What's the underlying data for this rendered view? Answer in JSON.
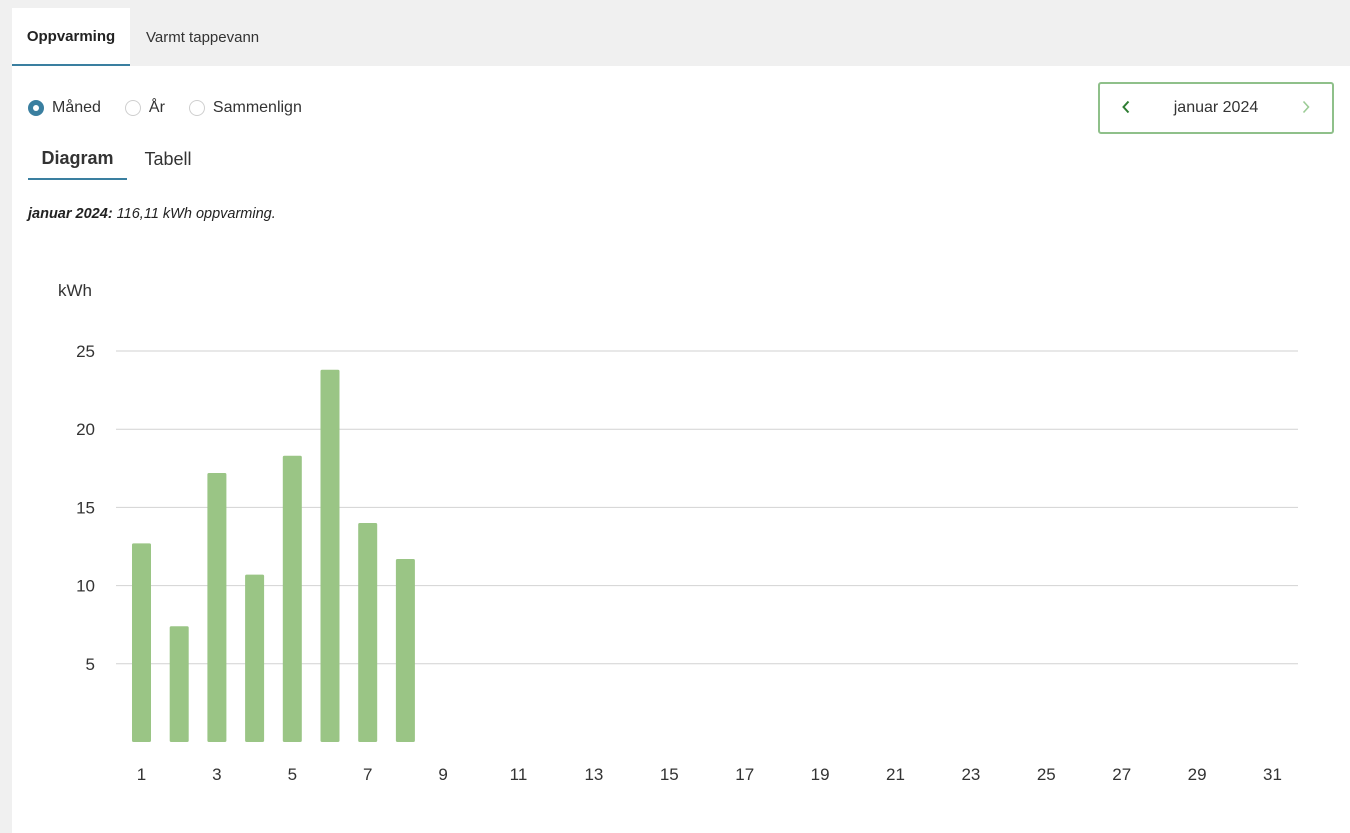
{
  "tabs": [
    {
      "label": "Oppvarming",
      "active": true
    },
    {
      "label": "Varmt tappevann",
      "active": false
    }
  ],
  "period_options": [
    {
      "label": "Måned",
      "checked": true
    },
    {
      "label": "År",
      "checked": false
    },
    {
      "label": "Sammenlign",
      "checked": false
    }
  ],
  "month_nav": {
    "label": "januar 2024",
    "prev_icon": "chevron-left-icon",
    "next_icon": "chevron-right-icon"
  },
  "view_tabs": [
    {
      "label": "Diagram",
      "active": true
    },
    {
      "label": "Tabell",
      "active": false
    }
  ],
  "summary": {
    "period": "januar 2024",
    "text": " 116,11 kWh oppvarming."
  },
  "colors": {
    "accent": "#3a7fa0",
    "bar": "#9ac585",
    "nav_border": "#8fc08a",
    "nav_arrow": "#2e7d32"
  },
  "chart_data": {
    "type": "bar",
    "ylabel": "kWh",
    "ylim": [
      0,
      25
    ],
    "yticks": [
      5,
      10,
      15,
      20,
      25
    ],
    "xlim": [
      1,
      31
    ],
    "xticks": [
      1,
      3,
      5,
      7,
      9,
      11,
      13,
      15,
      17,
      19,
      21,
      23,
      25,
      27,
      29,
      31
    ],
    "categories": [
      1,
      2,
      3,
      4,
      5,
      6,
      7,
      8
    ],
    "values": [
      12.7,
      7.4,
      17.2,
      10.7,
      18.3,
      23.8,
      14.0,
      11.7
    ],
    "grid": true,
    "legend": "none"
  }
}
